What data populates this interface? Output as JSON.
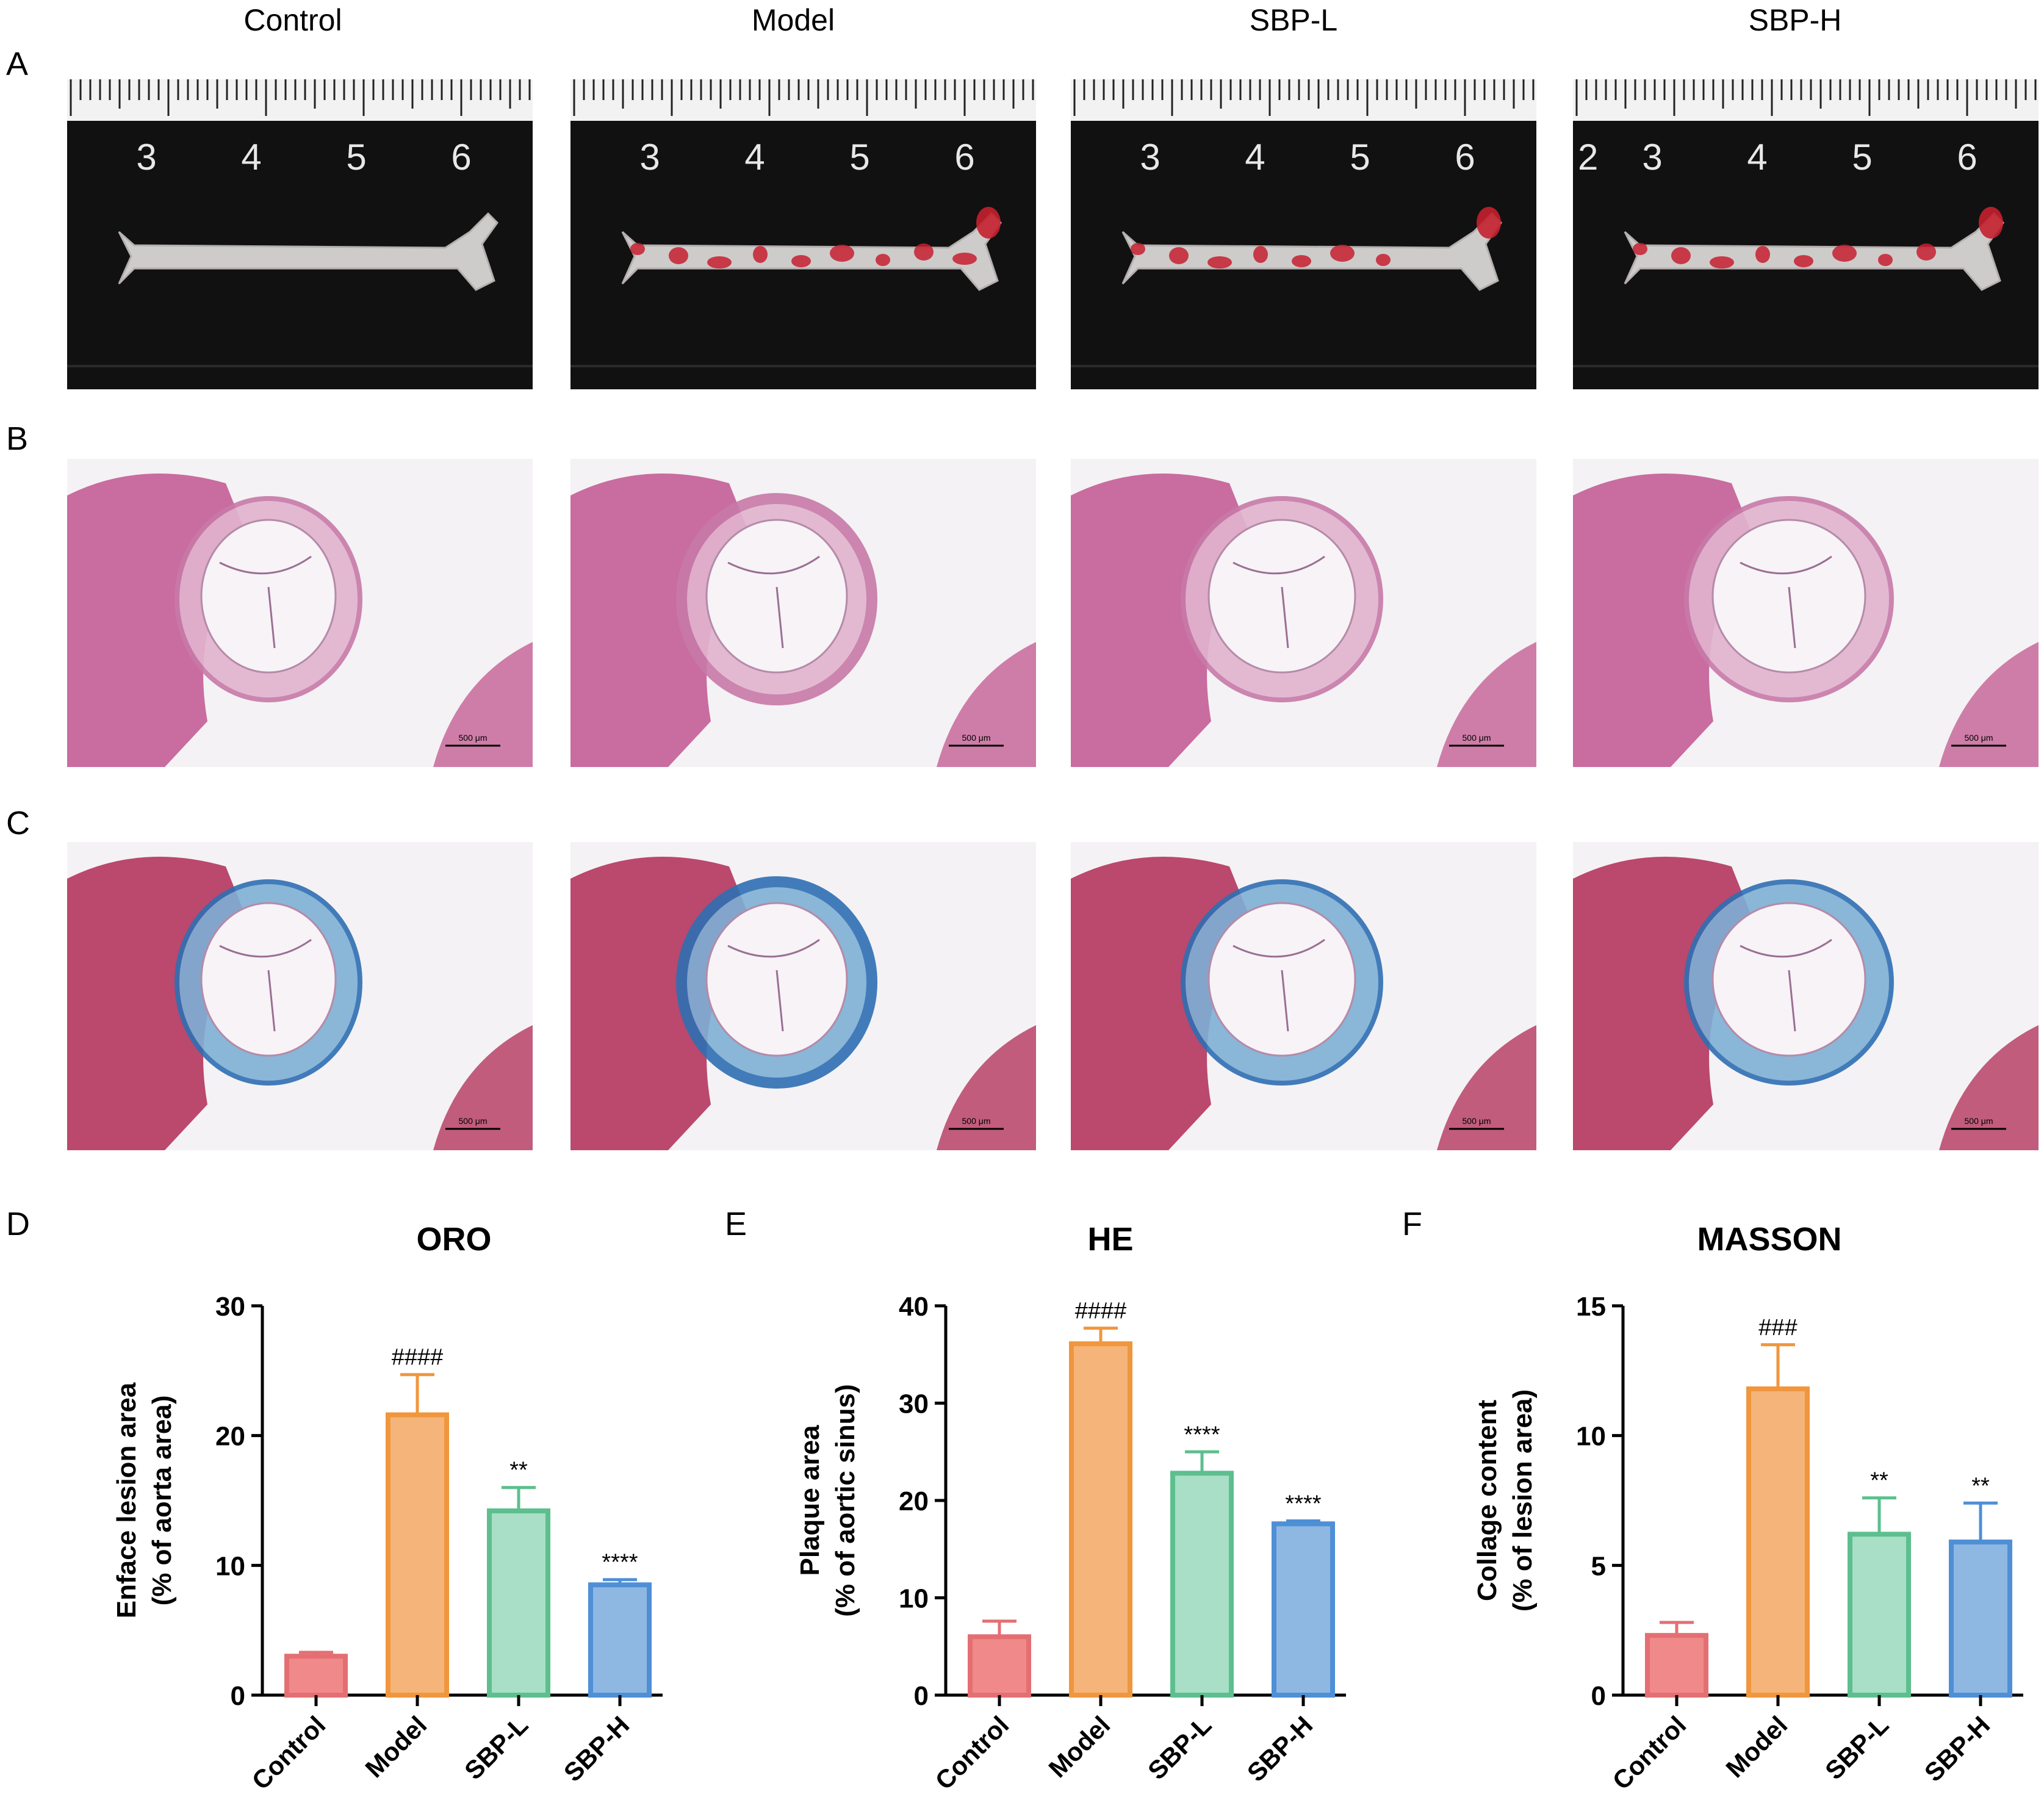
{
  "column_headers": [
    "Control",
    "Model",
    "SBP-L",
    "SBP-H"
  ],
  "row_labels": [
    "A",
    "B",
    "C"
  ],
  "ruler": {
    "numbers": [
      "3",
      "4",
      "5",
      "6"
    ],
    "extra_left_digit": "2"
  },
  "scale_bar_label": "500 μm",
  "panels": {
    "D": {
      "letter": "D"
    },
    "E": {
      "letter": "E"
    },
    "F": {
      "letter": "F"
    }
  },
  "colors": {
    "Control": "#F08A8A",
    "Model": "#F5B57A",
    "SBP-L": "#A8DFC6",
    "SBP-H": "#8EB8E2",
    "Control_edge": "#E46F73",
    "Model_edge": "#F0963D",
    "SBP-L_edge": "#5DBF8E",
    "SBP-H_edge": "#4F8FD6"
  },
  "chart_data": [
    {
      "type": "bar",
      "title": "ORO",
      "categories": [
        "Control",
        "Model",
        "SBP-L",
        "SBP-H"
      ],
      "values": [
        3.0,
        21.6,
        14.2,
        8.5
      ],
      "errors": [
        0.3,
        3.1,
        1.8,
        0.4
      ],
      "annotations": [
        "",
        "####",
        "**",
        "****"
      ],
      "ylabel_lines": [
        "Enface lesion area",
        "(% of aorta area)"
      ],
      "ylim": [
        0,
        30
      ],
      "yticks": [
        0,
        10,
        20,
        30
      ]
    },
    {
      "type": "bar",
      "title": "HE",
      "categories": [
        "Control",
        "Model",
        "SBP-L",
        "SBP-H"
      ],
      "values": [
        6.0,
        36.1,
        22.8,
        17.6
      ],
      "errors": [
        1.6,
        1.6,
        2.2,
        0.3
      ],
      "annotations": [
        "",
        "####",
        "****",
        "****"
      ],
      "ylabel_lines": [
        "Plaque area",
        "(% of aortic sinus)"
      ],
      "ylim": [
        0,
        40
      ],
      "yticks": [
        0,
        10,
        20,
        30,
        40
      ]
    },
    {
      "type": "bar",
      "title": "MASSON",
      "categories": [
        "Control",
        "Model",
        "SBP-L",
        "SBP-H"
      ],
      "values": [
        2.3,
        11.8,
        6.2,
        5.9
      ],
      "errors": [
        0.5,
        1.7,
        1.4,
        1.5
      ],
      "annotations": [
        "",
        "###",
        "**",
        "**"
      ],
      "ylabel_lines": [
        "Collage content",
        "(% of lesion area)"
      ],
      "ylim": [
        0,
        15
      ],
      "yticks": [
        0,
        5,
        10,
        15
      ]
    }
  ]
}
